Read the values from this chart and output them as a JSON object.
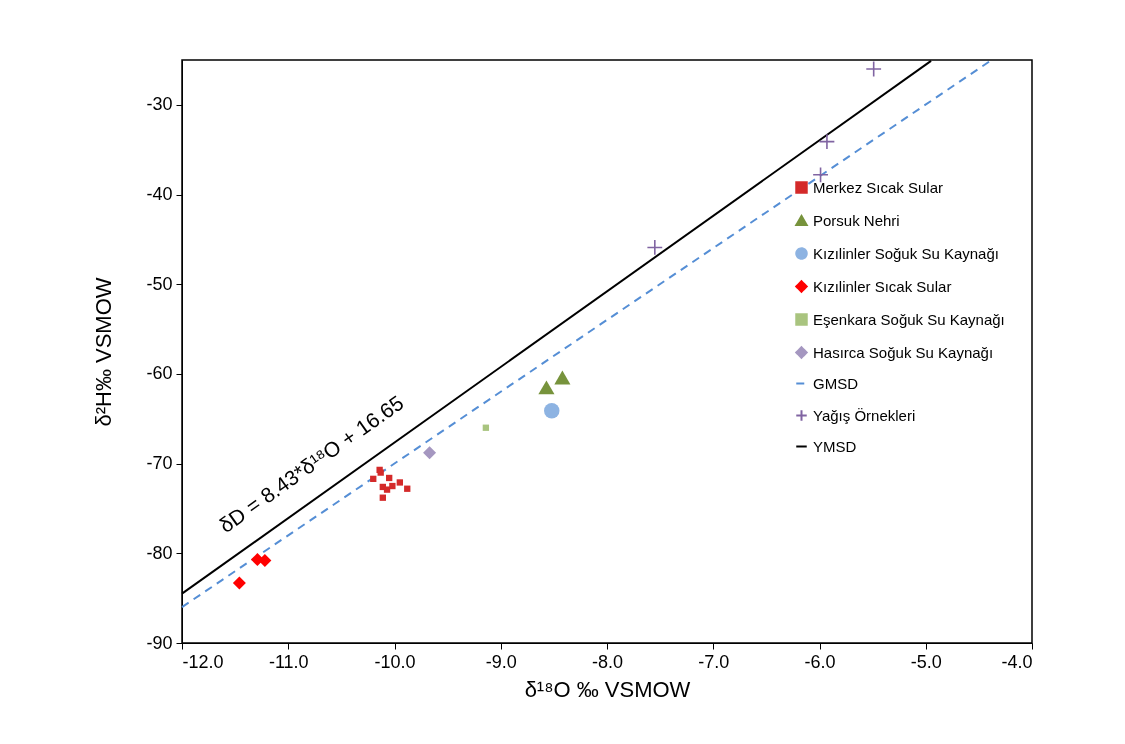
{
  "chart_data": {
    "type": "scatter",
    "xlabel": "δ¹⁸O ‰ VSMOW",
    "ylabel": "δ²H‰ VSMOW",
    "xlim": [
      -12,
      -4
    ],
    "ylim": [
      -90,
      -25
    ],
    "xticks": [
      {
        "value": -12,
        "label": "-12.0"
      },
      {
        "value": -11,
        "label": "-11.0"
      },
      {
        "value": -10,
        "label": "-10.0"
      },
      {
        "value": -9,
        "label": "-9.0"
      },
      {
        "value": -8,
        "label": "-8.0"
      },
      {
        "value": -7,
        "label": "-7.0"
      },
      {
        "value": -6,
        "label": "-6.0"
      },
      {
        "value": -5,
        "label": "-5.0"
      },
      {
        "value": -4,
        "label": "-4.0"
      }
    ],
    "yticks": [
      -90,
      -80,
      -70,
      -60,
      -50,
      -40,
      -30
    ],
    "grid": false,
    "legend": "right",
    "annotations": [
      "δD = 8.43*δ¹⁸O + 16.65"
    ],
    "series": [
      {
        "name": "Merkez Sıcak Sular",
        "marker": "square",
        "color": "#d42a2a",
        "x": [
          -10.14,
          -10.13,
          -10.2,
          -10.05,
          -9.95,
          -9.88,
          -10.11,
          -10.07,
          -10.02,
          -10.11
        ],
        "values": [
          -70.7,
          -71,
          -71.7,
          -71.6,
          -72.1,
          -72.8,
          -72.6,
          -72.9,
          -72.5,
          -73.8
        ]
      },
      {
        "name": "Porsuk Nehri",
        "marker": "triangle",
        "color": "#77933c",
        "x": [
          -8.57,
          -8.42
        ],
        "values": [
          -61.5,
          -60.4
        ]
      },
      {
        "name": "Kızılinler Soğuk Su Kaynağı",
        "marker": "circle",
        "color": "#8db3e2",
        "x": [
          -8.52
        ],
        "values": [
          -64.1
        ]
      },
      {
        "name": "Kızılinler Sıcak Sular",
        "marker": "diamond",
        "color": "#ff0000",
        "x": [
          -11.46,
          -11.29,
          -11.22
        ],
        "values": [
          -83.3,
          -80.7,
          -80.8
        ]
      },
      {
        "name": "Eşenkara Soğuk Su Kaynağı",
        "marker": "square",
        "color": "#a9c47f",
        "x": [
          -9.14
        ],
        "values": [
          -66
        ]
      },
      {
        "name": "Hasırca Soğuk Su Kaynağı",
        "marker": "diamond",
        "color": "#a597c0",
        "x": [
          -9.67
        ],
        "values": [
          -68.8
        ]
      },
      {
        "name": "GMSD",
        "type": "line",
        "line_style": "dashed",
        "color": "#558ed5",
        "x": [
          -12,
          -4.38
        ],
        "values": [
          -86,
          -25
        ]
      },
      {
        "name": "Yağış Örnekleri",
        "marker": "cross",
        "color": "#8064a2",
        "x": [
          -5.49,
          -5.93,
          -5.99,
          -7.55
        ],
        "values": [
          -26,
          -34.1,
          -37.8,
          -45.9
        ]
      },
      {
        "name": "YMSD",
        "type": "line",
        "line_style": "solid",
        "color": "#000000",
        "x": [
          -12,
          -4.95
        ],
        "values": [
          -84.5,
          -25.1
        ]
      }
    ]
  }
}
